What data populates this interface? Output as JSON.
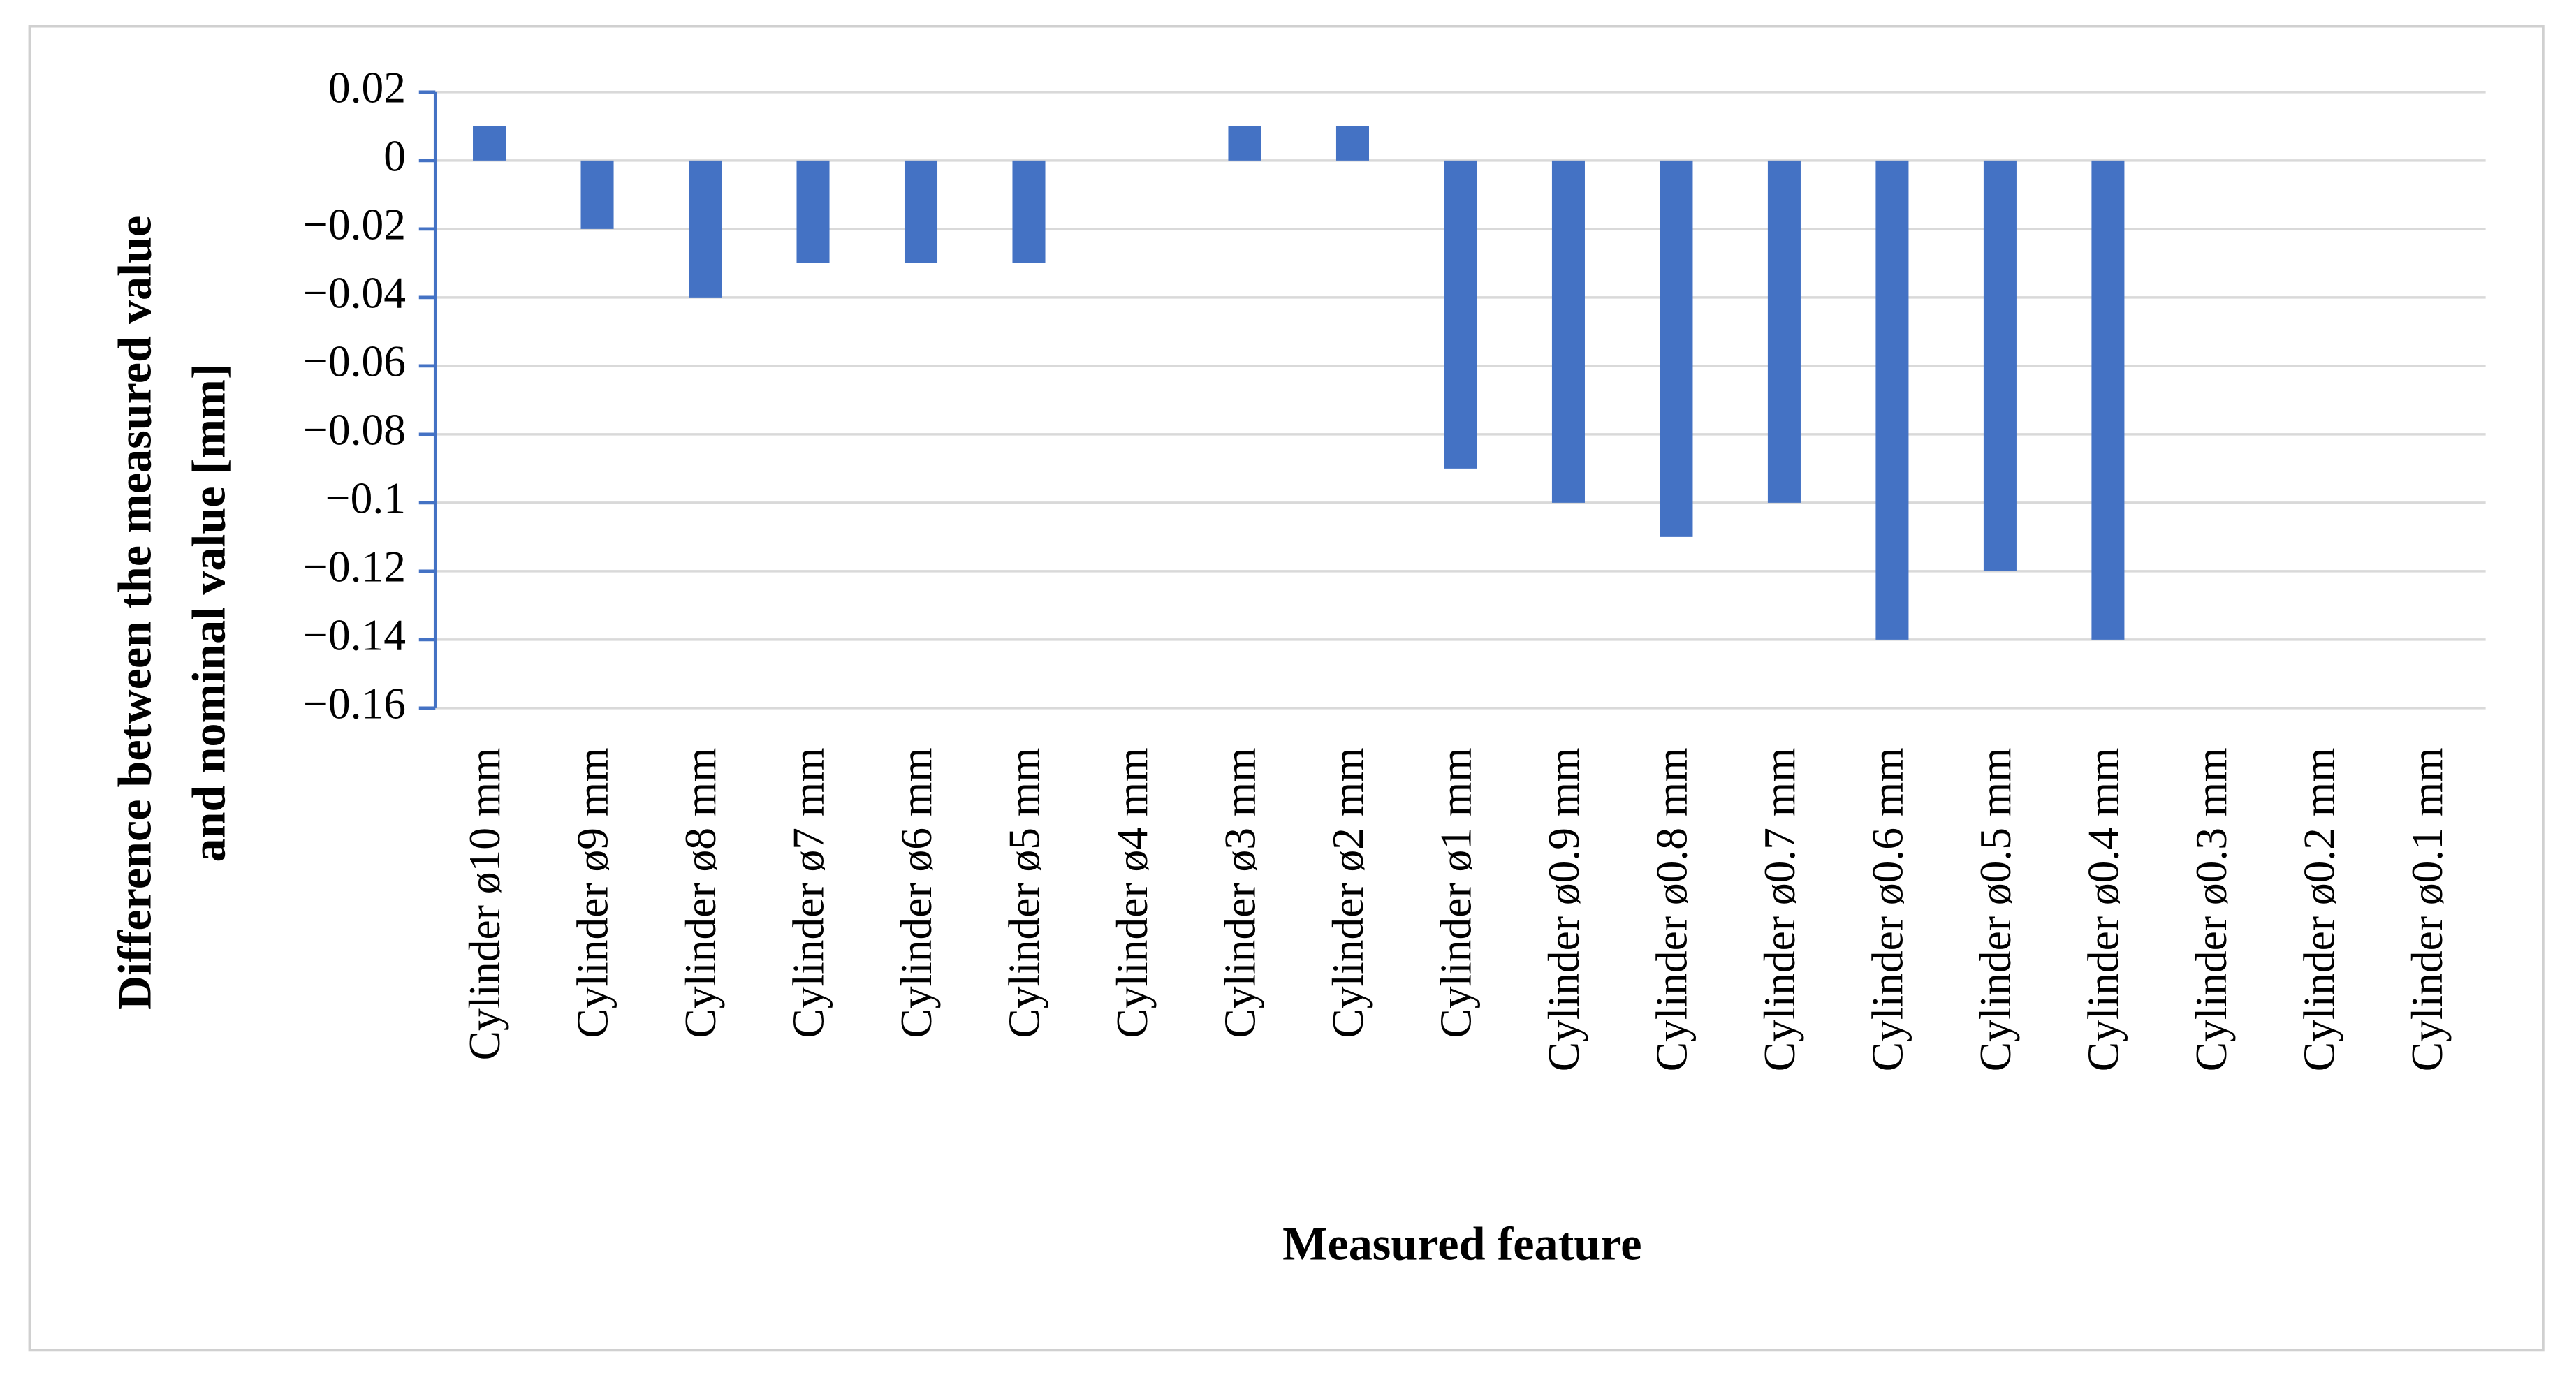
{
  "chart_data": {
    "type": "bar",
    "x_label": "Measured feature",
    "y_label": [
      "Difference between the measured value",
      "and nominal value [mm]"
    ],
    "categories": [
      "Cylinder ø10 mm",
      "Cylinder ø9 mm",
      "Cylinder ø8 mm",
      "Cylinder ø7 mm",
      "Cylinder ø6 mm",
      "Cylinder ø5 mm",
      "Cylinder ø4 mm",
      "Cylinder ø3 mm",
      "Cylinder ø2 mm",
      "Cylinder ø1 mm",
      "Cylinder ø0.9 mm",
      "Cylinder ø0.8 mm",
      "Cylinder ø0.7 mm",
      "Cylinder ø0.6 mm",
      "Cylinder ø0.5 mm",
      "Cylinder ø0.4 mm",
      "Cylinder ø0.3 mm",
      "Cylinder ø0.2 mm",
      "Cylinder ø0.1 mm"
    ],
    "values": [
      0.01,
      -0.02,
      -0.04,
      -0.03,
      -0.03,
      -0.03,
      0,
      0.01,
      0.01,
      -0.09,
      -0.1,
      -0.11,
      -0.1,
      -0.14,
      -0.12,
      -0.14,
      0,
      0,
      0
    ],
    "color": "#4472c4",
    "ylim": [
      -0.16,
      0.02
    ],
    "yticks": [
      0.02,
      0,
      {
        "value": -0.02,
        "label": "−0.02"
      },
      {
        "value": -0.04,
        "label": "−0.04"
      },
      {
        "value": -0.06,
        "label": "−0.06"
      },
      {
        "value": -0.08,
        "label": "−0.08"
      },
      {
        "value": -0.1,
        "label": "−0.1"
      },
      {
        "value": -0.12,
        "label": "−0.12"
      },
      {
        "value": -0.14,
        "label": "−0.14"
      },
      {
        "value": -0.16,
        "label": "−0.16"
      }
    ],
    "grid": true
  }
}
